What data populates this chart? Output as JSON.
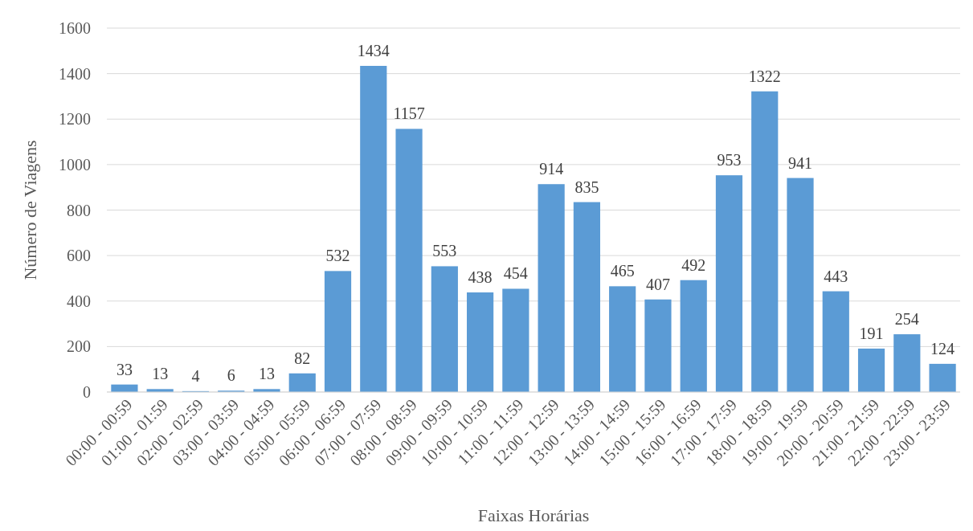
{
  "chart_data": {
    "type": "bar",
    "xlabel": "Faixas Horárias",
    "ylabel": "Número de Viagens",
    "categories": [
      "00:00 - 00:59",
      "01:00 - 01:59",
      "02:00 - 02:59",
      "03:00 - 03:59",
      "04:00 - 04:59",
      "05:00 - 05:59",
      "06:00 - 06:59",
      "07:00 - 07:59",
      "08:00 - 08:59",
      "09:00 - 09:59",
      "10:00 - 10:59",
      "11:00 - 11:59",
      "12:00 - 12:59",
      "13:00 - 13:59",
      "14:00 - 14:59",
      "15:00 - 15:59",
      "16:00 - 16:59",
      "17:00 - 17:59",
      "18:00 - 18:59",
      "19:00 - 19:59",
      "20:00 - 20:59",
      "21:00 - 21:59",
      "22:00 - 22:59",
      "23:00 - 23:59"
    ],
    "values": [
      33,
      13,
      4,
      6,
      13,
      82,
      532,
      1434,
      1157,
      553,
      438,
      454,
      914,
      835,
      465,
      407,
      492,
      953,
      1322,
      941,
      443,
      191,
      254,
      124
    ],
    "color": "#5b9bd5",
    "ylim": [
      0,
      1600
    ],
    "yticks": [
      0,
      200,
      400,
      600,
      800,
      1000,
      1200,
      1400,
      1600
    ],
    "grid": "y",
    "data_labels": true
  }
}
